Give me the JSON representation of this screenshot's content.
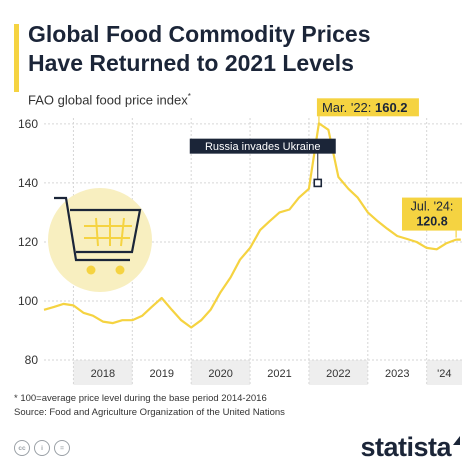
{
  "header": {
    "title_line1": "Global Food Commodity Prices",
    "title_line2": "Have Returned to 2021 Levels",
    "subtitle": "FAO global food price index",
    "subtitle_mark": "*"
  },
  "footnote": {
    "line1": "* 100=average price level during the base period 2014-2016",
    "line2": "Source: Food and Agriculture Organization of the United Nations"
  },
  "footer": {
    "cc_icons": [
      "cc-icon",
      "by-icon",
      "nd-icon"
    ],
    "brand": "statista"
  },
  "colors": {
    "line": "#f5d341",
    "navy": "#1b2538",
    "year_band": "#eeeeee",
    "grid": "#d6d6d6",
    "cart_bg": "#f8efc0"
  },
  "chart_data": {
    "type": "line",
    "title": "FAO global food price index",
    "ylim": [
      80,
      162
    ],
    "yticks": [
      80,
      100,
      120,
      140,
      160
    ],
    "grid": true,
    "x_start": 2017.5,
    "x_end": 2024.6,
    "year_labels": [
      "2018",
      "2019",
      "2020",
      "2021",
      "2022",
      "2023",
      "'24"
    ],
    "series": [
      {
        "name": "FAO global food price index",
        "x": [
          2017.5,
          2017.67,
          2017.83,
          2018.0,
          2018.17,
          2018.33,
          2018.5,
          2018.67,
          2018.83,
          2019.0,
          2019.17,
          2019.33,
          2019.5,
          2019.67,
          2019.83,
          2020.0,
          2020.17,
          2020.33,
          2020.5,
          2020.67,
          2020.83,
          2021.0,
          2021.17,
          2021.33,
          2021.5,
          2021.67,
          2021.83,
          2022.0,
          2022.17,
          2022.33,
          2022.5,
          2022.67,
          2022.83,
          2023.0,
          2023.17,
          2023.33,
          2023.5,
          2023.67,
          2023.83,
          2024.0,
          2024.17,
          2024.33,
          2024.5,
          2024.58
        ],
        "values": [
          97,
          98,
          99,
          98.5,
          96,
          95,
          93,
          92.5,
          93.5,
          93.5,
          95,
          98,
          101,
          97,
          93.5,
          91,
          93.5,
          97,
          103,
          108,
          114,
          118,
          124,
          127,
          130,
          131,
          135,
          138,
          160.2,
          158,
          142,
          138,
          135,
          130,
          127,
          124.5,
          122,
          121,
          120,
          118,
          117.5,
          119.5,
          120.8,
          120.8
        ]
      }
    ],
    "annotations": [
      {
        "label": "Russia invades Ukraine",
        "x": 2022.15,
        "y": 140
      },
      {
        "label": "Mar. '22:",
        "value_label": "160.2",
        "x": 2022.17,
        "y": 160.2
      },
      {
        "label": "Jul. '24:",
        "value_label": "120.8",
        "x": 2024.5,
        "y": 120.8
      }
    ]
  }
}
